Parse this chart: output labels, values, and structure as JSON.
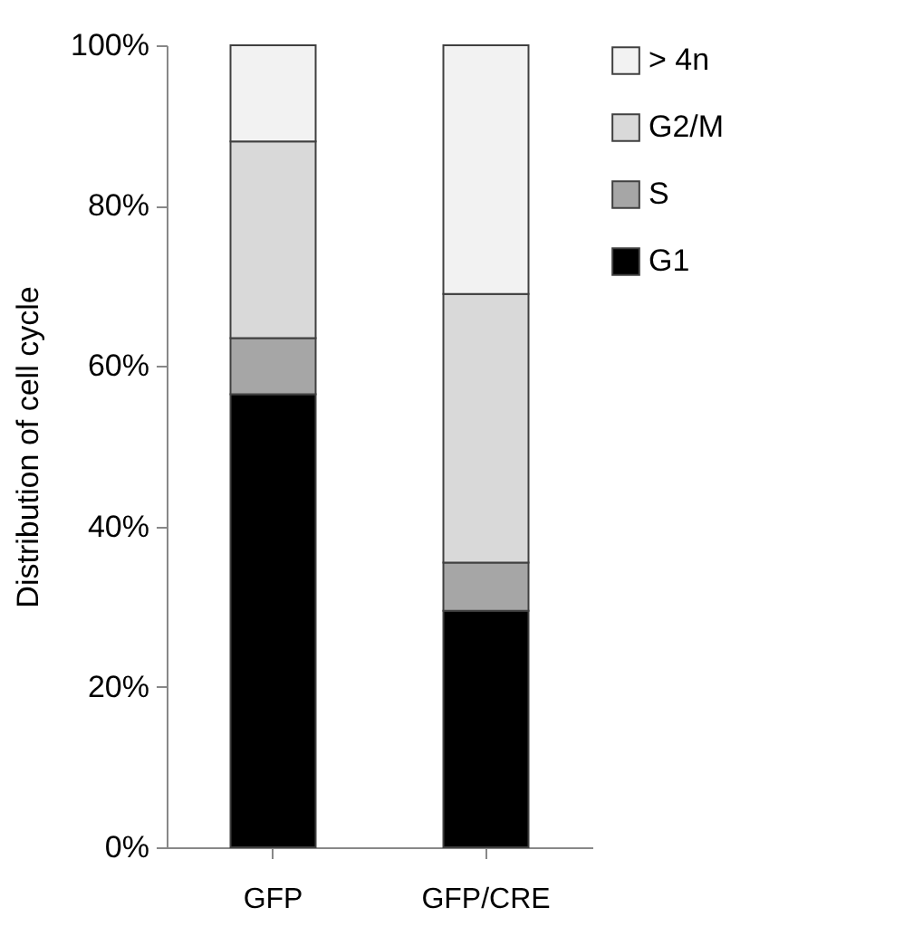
{
  "chart_data": {
    "type": "bar",
    "stacked": true,
    "ylabel": "Distribution of cell cycle",
    "categories": [
      "GFP",
      "GFP/CRE"
    ],
    "series": [
      {
        "name": "G1",
        "color": "#000000",
        "values": [
          56.5,
          29.5
        ]
      },
      {
        "name": "S",
        "color": "#a6a6a6",
        "values": [
          7,
          6
        ]
      },
      {
        "name": "G2/M",
        "color": "#d9d9d9",
        "values": [
          24.5,
          33.5
        ]
      },
      {
        "name": "> 4n",
        "color": "#f2f2f2",
        "values": [
          12,
          31
        ]
      }
    ],
    "ylim": [
      0,
      100
    ],
    "yticks": [
      {
        "value": 0,
        "label": "0%"
      },
      {
        "value": 20,
        "label": "20%"
      },
      {
        "value": 40,
        "label": "40%"
      },
      {
        "value": 60,
        "label": "60%"
      },
      {
        "value": 80,
        "label": "80%"
      },
      {
        "value": 100,
        "label": "100%"
      }
    ],
    "grid": false,
    "legend": "right"
  }
}
